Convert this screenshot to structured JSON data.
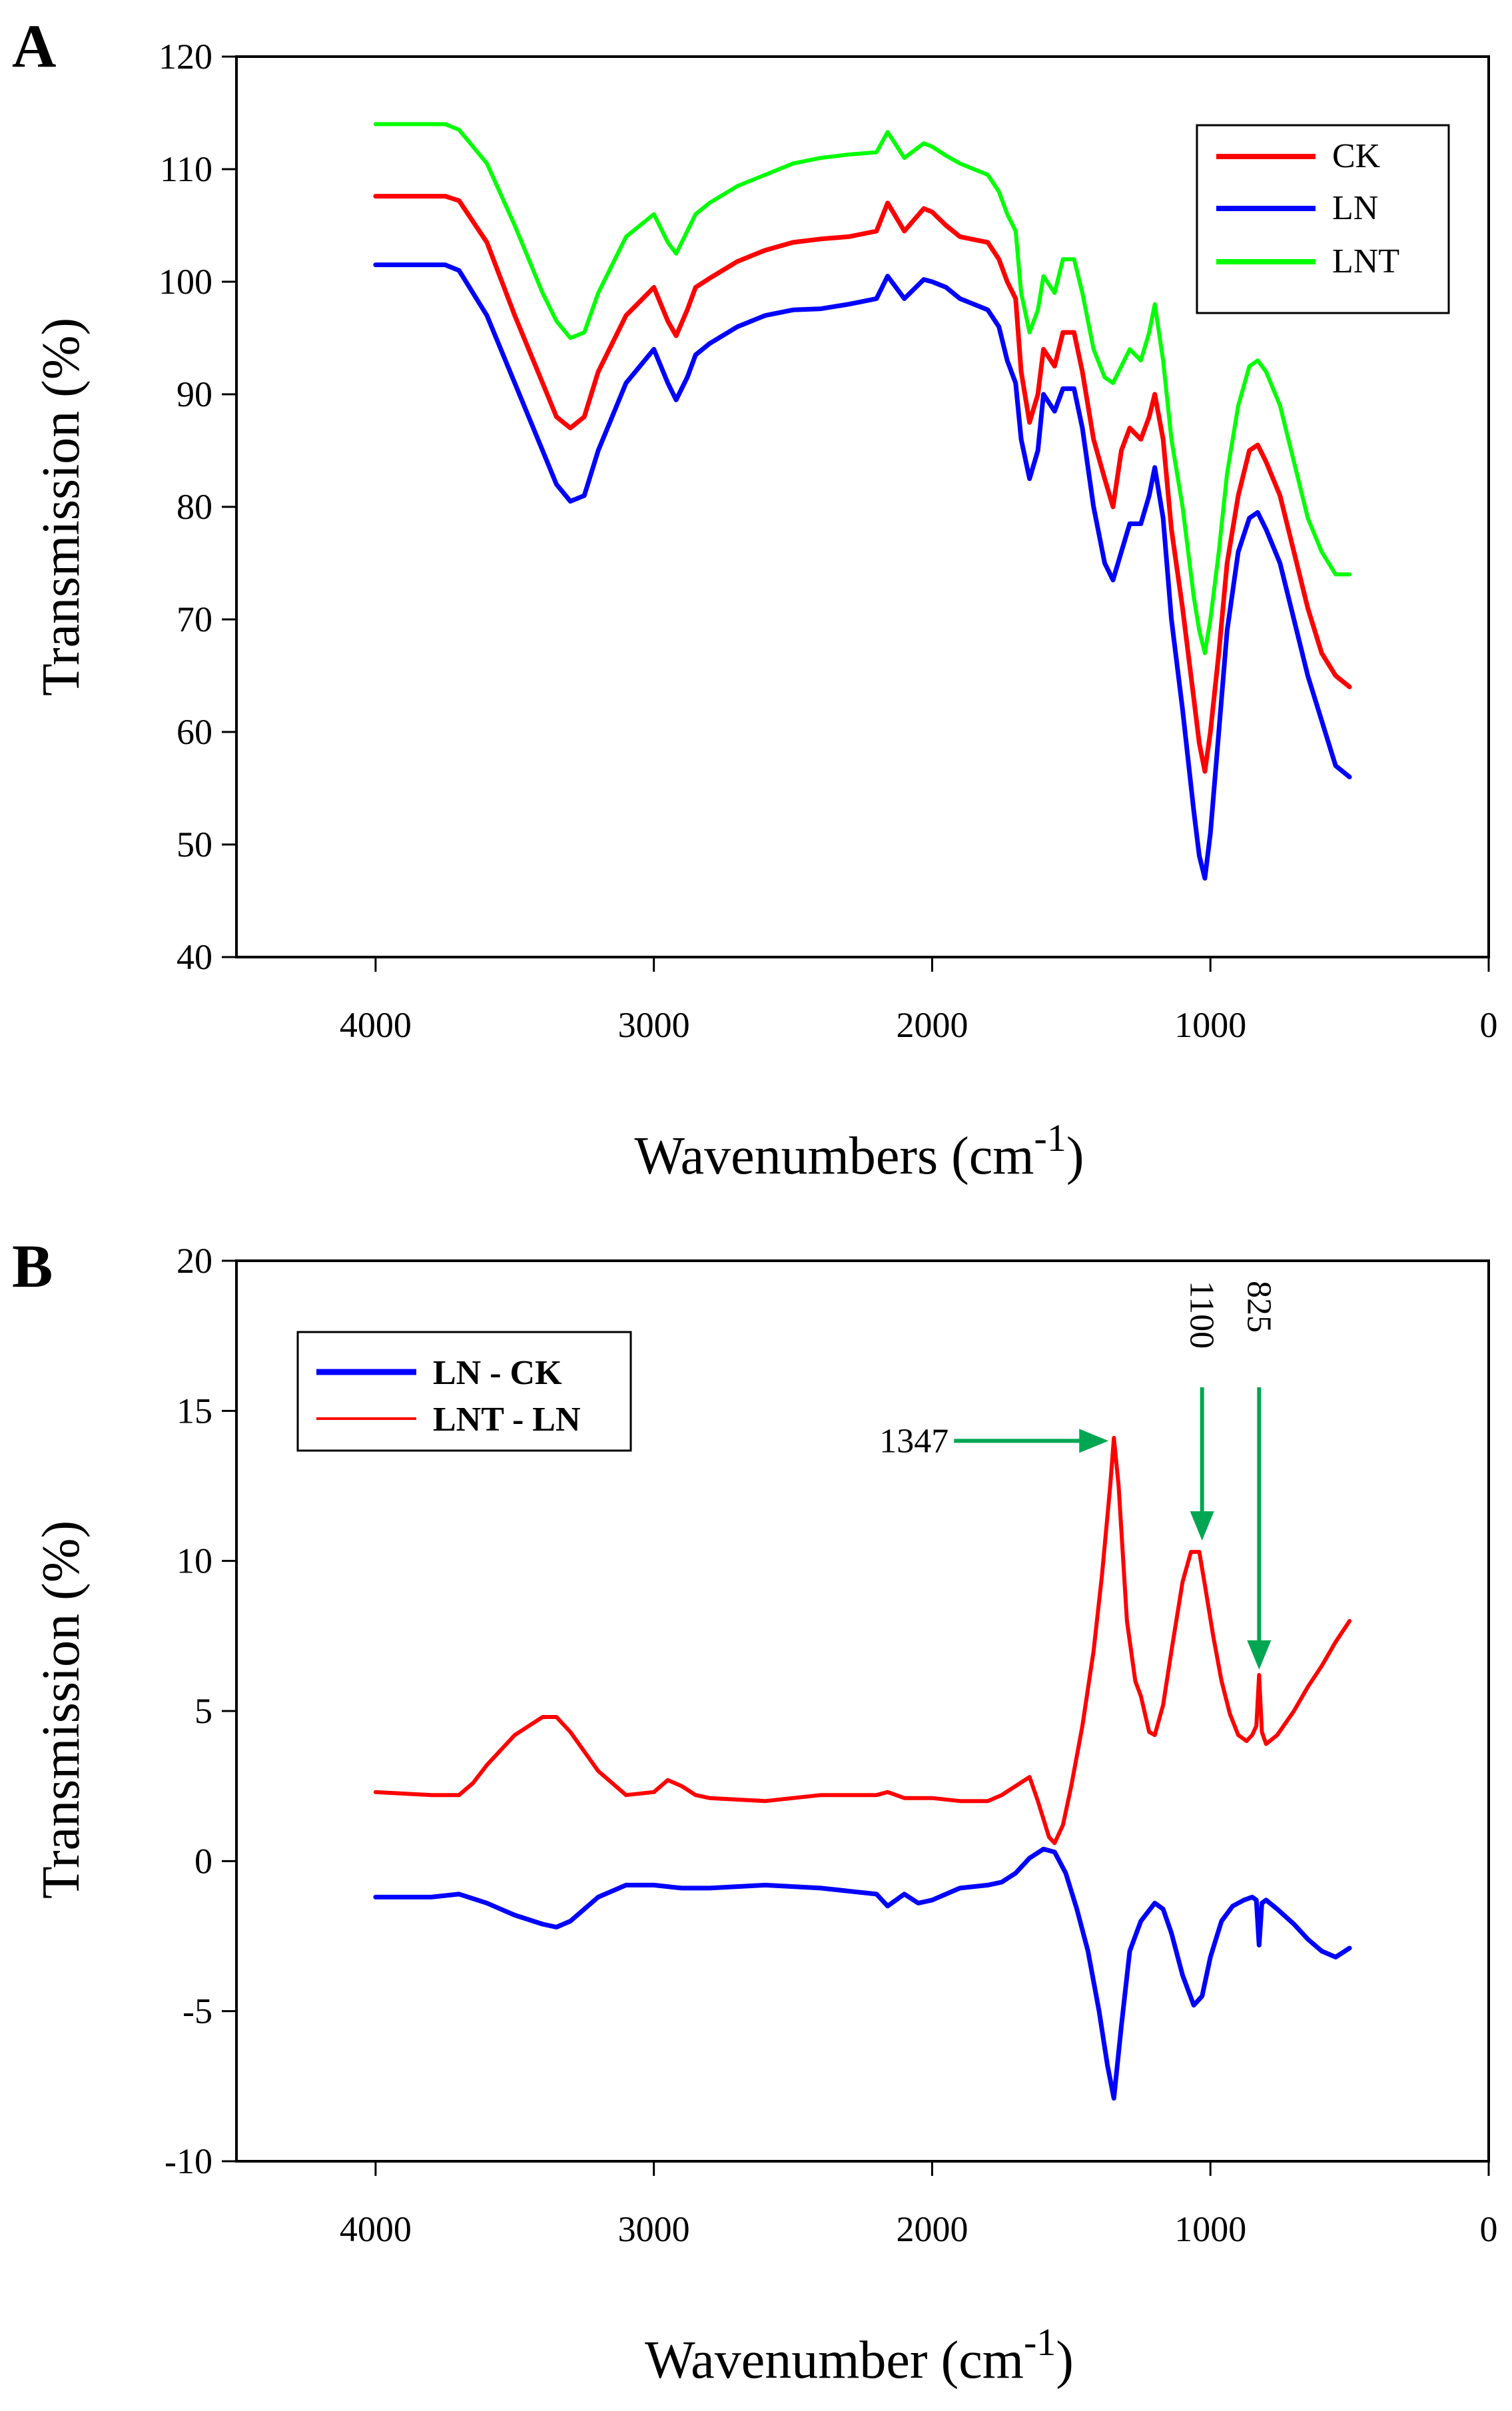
{
  "chart_data": [
    {
      "panel": "A",
      "type": "line",
      "title": "",
      "xlabel": "Wavenumbers (cm",
      "xlabel_sup": "-1",
      "xlabel_close": ")",
      "ylabel": "Transmission (%)",
      "xlim": [
        4500,
        0
      ],
      "ylim": [
        40,
        120
      ],
      "x_ticks": [
        4000,
        3000,
        2000,
        1000,
        0
      ],
      "x_tick_labels": [
        "4000",
        "3000",
        "2000",
        "1000",
        "0"
      ],
      "y_ticks": [
        40,
        50,
        60,
        70,
        80,
        90,
        100,
        110,
        120
      ],
      "y_tick_labels": [
        "40",
        "50",
        "60",
        "70",
        "80",
        "90",
        "100",
        "110",
        "120"
      ],
      "legend_position": "top-right",
      "series": [
        {
          "name": "CK",
          "color": "#ff0000",
          "x": [
            4000,
            3750,
            3700,
            3600,
            3500,
            3400,
            3350,
            3300,
            3250,
            3200,
            3100,
            3000,
            2950,
            2920,
            2880,
            2850,
            2800,
            2700,
            2600,
            2500,
            2400,
            2300,
            2200,
            2160,
            2100,
            2030,
            2000,
            1950,
            1900,
            1800,
            1760,
            1730,
            1700,
            1680,
            1650,
            1620,
            1600,
            1560,
            1530,
            1490,
            1460,
            1420,
            1380,
            1350,
            1320,
            1290,
            1250,
            1220,
            1200,
            1170,
            1140,
            1100,
            1060,
            1040,
            1020,
            1000,
            970,
            940,
            900,
            860,
            830,
            800,
            750,
            700,
            650,
            600,
            550,
            500
          ],
          "values": [
            107.6,
            107.6,
            107.2,
            103.5,
            97,
            91,
            88,
            87,
            88,
            92,
            97,
            99.5,
            96.5,
            95.2,
            97.5,
            99.5,
            100.3,
            101.8,
            102.8,
            103.5,
            103.8,
            104,
            104.5,
            107,
            104.5,
            106.5,
            106.2,
            105,
            104,
            103.5,
            102,
            100,
            98.5,
            92,
            87.5,
            90,
            94,
            92.5,
            95.5,
            95.5,
            92,
            86,
            82.5,
            80,
            85,
            87,
            86,
            88,
            90,
            86,
            78,
            71,
            63,
            59,
            56.5,
            60,
            67,
            75,
            81,
            85,
            85.5,
            84,
            81,
            76,
            71,
            67,
            65,
            64
          ]
        },
        {
          "name": "LN",
          "color": "#0000ff",
          "x": [
            4000,
            3750,
            3700,
            3600,
            3500,
            3400,
            3350,
            3300,
            3250,
            3200,
            3100,
            3000,
            2950,
            2920,
            2880,
            2850,
            2800,
            2700,
            2600,
            2500,
            2400,
            2300,
            2200,
            2160,
            2100,
            2030,
            2000,
            1950,
            1900,
            1800,
            1760,
            1730,
            1700,
            1680,
            1650,
            1620,
            1600,
            1560,
            1530,
            1490,
            1460,
            1420,
            1380,
            1350,
            1320,
            1290,
            1250,
            1220,
            1200,
            1170,
            1140,
            1100,
            1060,
            1040,
            1020,
            1000,
            970,
            940,
            900,
            860,
            830,
            800,
            750,
            700,
            650,
            600,
            550,
            500
          ],
          "values": [
            101.5,
            101.5,
            101,
            97,
            91,
            85,
            82,
            80.5,
            81,
            85,
            91,
            94,
            91,
            89.5,
            91.5,
            93.5,
            94.5,
            96,
            97,
            97.5,
            97.6,
            98,
            98.5,
            100.5,
            98.5,
            100.2,
            100,
            99.5,
            98.5,
            97.5,
            96,
            93,
            91,
            86,
            82.5,
            85,
            90,
            88.5,
            90.5,
            90.5,
            87,
            80,
            75,
            73.5,
            76,
            78.5,
            78.5,
            81,
            83.5,
            79,
            70,
            62,
            53,
            49,
            47,
            51,
            60,
            69,
            76,
            79,
            79.5,
            78,
            75,
            70,
            65,
            61,
            57,
            56
          ]
        },
        {
          "name": "LNT",
          "color": "#00ff00",
          "x": [
            4000,
            3750,
            3700,
            3600,
            3500,
            3400,
            3350,
            3300,
            3250,
            3200,
            3100,
            3000,
            2950,
            2920,
            2880,
            2850,
            2800,
            2700,
            2600,
            2500,
            2400,
            2300,
            2200,
            2160,
            2100,
            2030,
            2000,
            1950,
            1900,
            1800,
            1760,
            1730,
            1700,
            1680,
            1650,
            1620,
            1600,
            1560,
            1530,
            1490,
            1460,
            1420,
            1380,
            1350,
            1320,
            1290,
            1250,
            1220,
            1200,
            1170,
            1140,
            1100,
            1060,
            1040,
            1020,
            1000,
            970,
            940,
            900,
            860,
            830,
            800,
            750,
            700,
            650,
            600,
            550,
            500
          ],
          "values": [
            114,
            114,
            113.5,
            110.5,
            105,
            99,
            96.5,
            95,
            95.5,
            99,
            104,
            106,
            103.5,
            102.5,
            104.5,
            106,
            107,
            108.5,
            109.5,
            110.5,
            111,
            111.3,
            111.5,
            113.3,
            111,
            112.3,
            112,
            111.2,
            110.5,
            109.5,
            108,
            106,
            104.5,
            99,
            95.5,
            97.5,
            100.5,
            99,
            102,
            102,
            99,
            94,
            91.5,
            91,
            92.5,
            94,
            93,
            95.5,
            98,
            93,
            86,
            80,
            72,
            69,
            67,
            70,
            76,
            83,
            89,
            92.5,
            93,
            92,
            89,
            84,
            79,
            76,
            74,
            74
          ]
        }
      ]
    },
    {
      "panel": "B",
      "type": "line",
      "title": "",
      "xlabel": "Wavenumber (cm",
      "xlabel_sup": "-1",
      "xlabel_close": ")",
      "ylabel": "Transmission (%)",
      "xlim": [
        4500,
        0
      ],
      "ylim": [
        -10,
        20
      ],
      "x_ticks": [
        4000,
        3000,
        2000,
        1000,
        0
      ],
      "x_tick_labels": [
        "4000",
        "3000",
        "2000",
        "1000",
        "0"
      ],
      "y_ticks": [
        -10,
        -5,
        0,
        5,
        10,
        15,
        20
      ],
      "y_tick_labels": [
        "-10",
        "-5",
        "0",
        "5",
        "10",
        "15",
        "20"
      ],
      "legend_position": "top-left",
      "annotations": [
        {
          "text": "1347",
          "x": 1347,
          "y": 14
        },
        {
          "text": "1100",
          "x": 1030,
          "y": 10.5
        },
        {
          "text": "825",
          "x": 825,
          "y": 6.2
        }
      ],
      "annotation_color": "#00a651",
      "series": [
        {
          "name": "LN - CK",
          "color": "#0000ff",
          "x": [
            4000,
            3800,
            3700,
            3600,
            3500,
            3400,
            3350,
            3300,
            3200,
            3100,
            3000,
            2900,
            2800,
            2600,
            2400,
            2200,
            2160,
            2100,
            2050,
            2000,
            1900,
            1800,
            1750,
            1700,
            1650,
            1600,
            1560,
            1520,
            1480,
            1440,
            1400,
            1370,
            1347,
            1320,
            1290,
            1250,
            1200,
            1170,
            1140,
            1100,
            1060,
            1030,
            1000,
            960,
            920,
            880,
            850,
            835,
            825,
            815,
            800,
            760,
            700,
            650,
            600,
            550,
            500
          ],
          "values": [
            -1.2,
            -1.2,
            -1.1,
            -1.4,
            -1.8,
            -2.1,
            -2.2,
            -2.0,
            -1.2,
            -0.8,
            -0.8,
            -0.9,
            -0.9,
            -0.8,
            -0.9,
            -1.1,
            -1.5,
            -1.1,
            -1.4,
            -1.3,
            -0.9,
            -0.8,
            -0.7,
            -0.4,
            0.1,
            0.4,
            0.3,
            -0.4,
            -1.6,
            -3.0,
            -5.0,
            -6.8,
            -7.9,
            -5.5,
            -3.0,
            -2.0,
            -1.4,
            -1.6,
            -2.4,
            -3.8,
            -4.8,
            -4.5,
            -3.2,
            -2.0,
            -1.5,
            -1.3,
            -1.2,
            -1.3,
            -2.8,
            -1.4,
            -1.3,
            -1.6,
            -2.1,
            -2.6,
            -3.0,
            -3.2,
            -2.9
          ]
        },
        {
          "name": "LNT - LN",
          "color": "#ff0000",
          "x": [
            4000,
            3800,
            3700,
            3650,
            3600,
            3500,
            3400,
            3350,
            3300,
            3200,
            3100,
            3000,
            2950,
            2900,
            2850,
            2800,
            2600,
            2400,
            2200,
            2160,
            2100,
            2000,
            1900,
            1800,
            1750,
            1700,
            1650,
            1620,
            1580,
            1560,
            1530,
            1500,
            1460,
            1420,
            1390,
            1360,
            1347,
            1330,
            1300,
            1270,
            1250,
            1220,
            1200,
            1170,
            1140,
            1100,
            1070,
            1040,
            1020,
            990,
            960,
            930,
            900,
            870,
            850,
            835,
            825,
            815,
            800,
            760,
            700,
            650,
            600,
            550,
            500
          ],
          "values": [
            2.3,
            2.2,
            2.2,
            2.6,
            3.2,
            4.2,
            4.8,
            4.8,
            4.3,
            3.0,
            2.2,
            2.3,
            2.7,
            2.5,
            2.2,
            2.1,
            2.0,
            2.2,
            2.2,
            2.3,
            2.1,
            2.1,
            2.0,
            2.0,
            2.2,
            2.5,
            2.8,
            2.0,
            0.8,
            0.6,
            1.2,
            2.5,
            4.5,
            7.0,
            9.5,
            12.5,
            14.1,
            12.5,
            8.0,
            6.0,
            5.5,
            4.3,
            4.2,
            5.2,
            7.0,
            9.3,
            10.3,
            10.3,
            9.2,
            7.5,
            6.0,
            4.9,
            4.2,
            4.0,
            4.2,
            4.5,
            6.2,
            4.3,
            3.9,
            4.2,
            5.0,
            5.8,
            6.5,
            7.3,
            8.0
          ]
        }
      ]
    }
  ]
}
